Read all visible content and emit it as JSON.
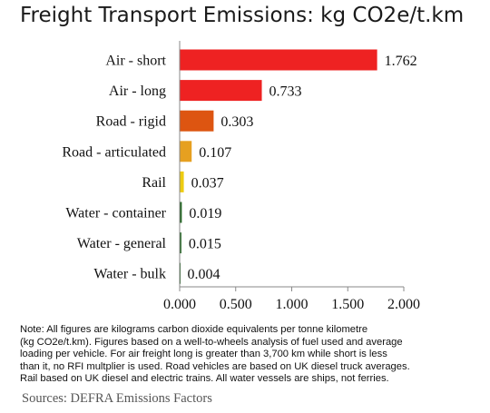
{
  "chart_data": {
    "type": "bar",
    "orientation": "horizontal",
    "title": "Freight Transport Emissions: kg CO2e/t.km",
    "categories": [
      "Air - short",
      "Air - long",
      "Road - rigid",
      "Road - articulated",
      "Rail",
      "Water - container",
      "Water - general",
      "Water - bulk"
    ],
    "values": [
      1.762,
      0.733,
      0.303,
      0.107,
      0.037,
      0.019,
      0.015,
      0.004
    ],
    "value_labels": [
      "1.762",
      "0.733",
      "0.303",
      "0.107",
      "0.037",
      "0.019",
      "0.015",
      "0.004"
    ],
    "bar_colors": [
      "#ee2222",
      "#ee2222",
      "#dd5511",
      "#e6a020",
      "#eecc11",
      "#226622",
      "#226622",
      "#226622"
    ],
    "xlim": [
      0,
      2
    ],
    "xticks": [
      "0.000",
      "0.500",
      "1.000",
      "1.500",
      "2.000"
    ],
    "xtick_values": [
      0,
      0.5,
      1,
      1.5,
      2
    ],
    "grid": false,
    "legend": "none"
  },
  "note": "Note:  All figures are kilograms carbon dioxide equivalents per tonne kilometre\n(kg CO2e/t.km). Figures based on a well-to-wheels analysis of fuel used and average\nloading per vehicle. For air freight long is greater than 3,700 km while short is less\nthan it, no RFI multplier is used.  Road vehicles are based on UK diesel truck averages.\n Rail based on UK diesel and electric trains.  All water vessels are ships, not ferries.",
  "sources": "Sources:  DEFRA Emissions Factors"
}
